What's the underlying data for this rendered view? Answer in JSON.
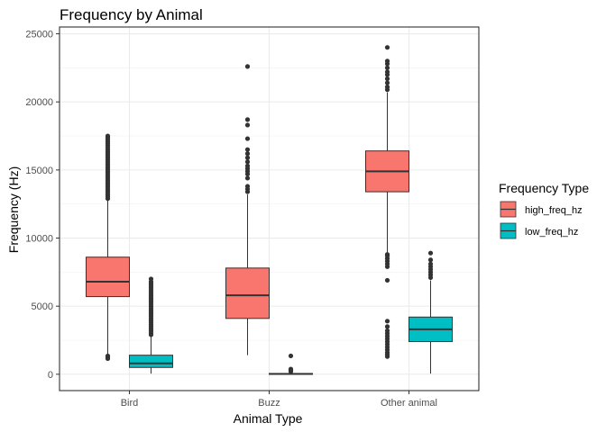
{
  "chart_data": {
    "type": "boxplot",
    "title": "Frequency by Animal",
    "xlabel": "Animal Type",
    "ylabel": "Frequency (Hz)",
    "categories": [
      "Bird",
      "Buzz",
      "Other animal"
    ],
    "ylim": [
      -1200,
      25500
    ],
    "yticks": [
      0,
      5000,
      10000,
      15000,
      20000,
      25000
    ],
    "grid": true,
    "legend": {
      "title": "Frequency Type",
      "position": "right",
      "entries": [
        "high_freq_hz",
        "low_freq_hz"
      ]
    },
    "series": [
      {
        "name": "high_freq_hz",
        "color": "#F8766D",
        "boxes": [
          {
            "category": "Bird",
            "q1": 5700,
            "median": 6800,
            "q3": 8600,
            "whisker_low": 1400,
            "whisker_high": 12800,
            "outliers": [
              1150,
              1250,
              1350,
              12900,
              13050,
              13200,
              13350,
              13500,
              13650,
              13800,
              13950,
              14100,
              14250,
              14400,
              14550,
              14700,
              14850,
              15000,
              15150,
              15300,
              15450,
              15600,
              15750,
              15900,
              16050,
              16200,
              16350,
              16500,
              16650,
              16800,
              16950,
              17100,
              17250,
              17400,
              17500
            ]
          },
          {
            "category": "Buzz",
            "q1": 4100,
            "median": 5800,
            "q3": 7800,
            "whisker_low": 1400,
            "whisker_high": 13200,
            "outliers": [
              13400,
              13600,
              13800,
              14400,
              14700,
              14900,
              15100,
              15300,
              15600,
              15900,
              16200,
              16500,
              17300,
              18300,
              18700,
              22600
            ]
          },
          {
            "category": "Other animal",
            "q1": 13400,
            "median": 14900,
            "q3": 16400,
            "whisker_low": 8900,
            "whisker_high": 20700,
            "outliers": [
              1300,
              1450,
              1600,
              1800,
              2000,
              2200,
              2400,
              2600,
              2800,
              3000,
              3200,
              3500,
              3900,
              6900,
              7900,
              8100,
              8300,
              8500,
              8700,
              8800,
              20900,
              21100,
              21400,
              21700,
              22000,
              22200,
              22500,
              22800,
              23000,
              24000
            ]
          }
        ]
      },
      {
        "name": "low_freq_hz",
        "color": "#00BFC4",
        "boxes": [
          {
            "category": "Bird",
            "q1": 500,
            "median": 800,
            "q3": 1400,
            "whisker_low": 50,
            "whisker_high": 2800,
            "outliers": [
              2900,
              3050,
              3200,
              3350,
              3500,
              3650,
              3800,
              3950,
              4100,
              4250,
              4400,
              4550,
              4700,
              4850,
              5000,
              5150,
              5300,
              5450,
              5600,
              5750,
              5900,
              6050,
              6200,
              6350,
              6500,
              6650,
              6800,
              7000
            ]
          },
          {
            "category": "Buzz",
            "q1": 0,
            "median": 20,
            "q3": 60,
            "whisker_low": 0,
            "whisker_high": 120,
            "outliers": [
              200,
              300,
              380,
              1350
            ]
          },
          {
            "category": "Other animal",
            "q1": 2400,
            "median": 3300,
            "q3": 4200,
            "whisker_low": 50,
            "whisker_high": 6900,
            "outliers": [
              7100,
              7300,
              7500,
              7700,
              7900,
              8100,
              8400,
              8900
            ]
          }
        ]
      }
    ]
  }
}
